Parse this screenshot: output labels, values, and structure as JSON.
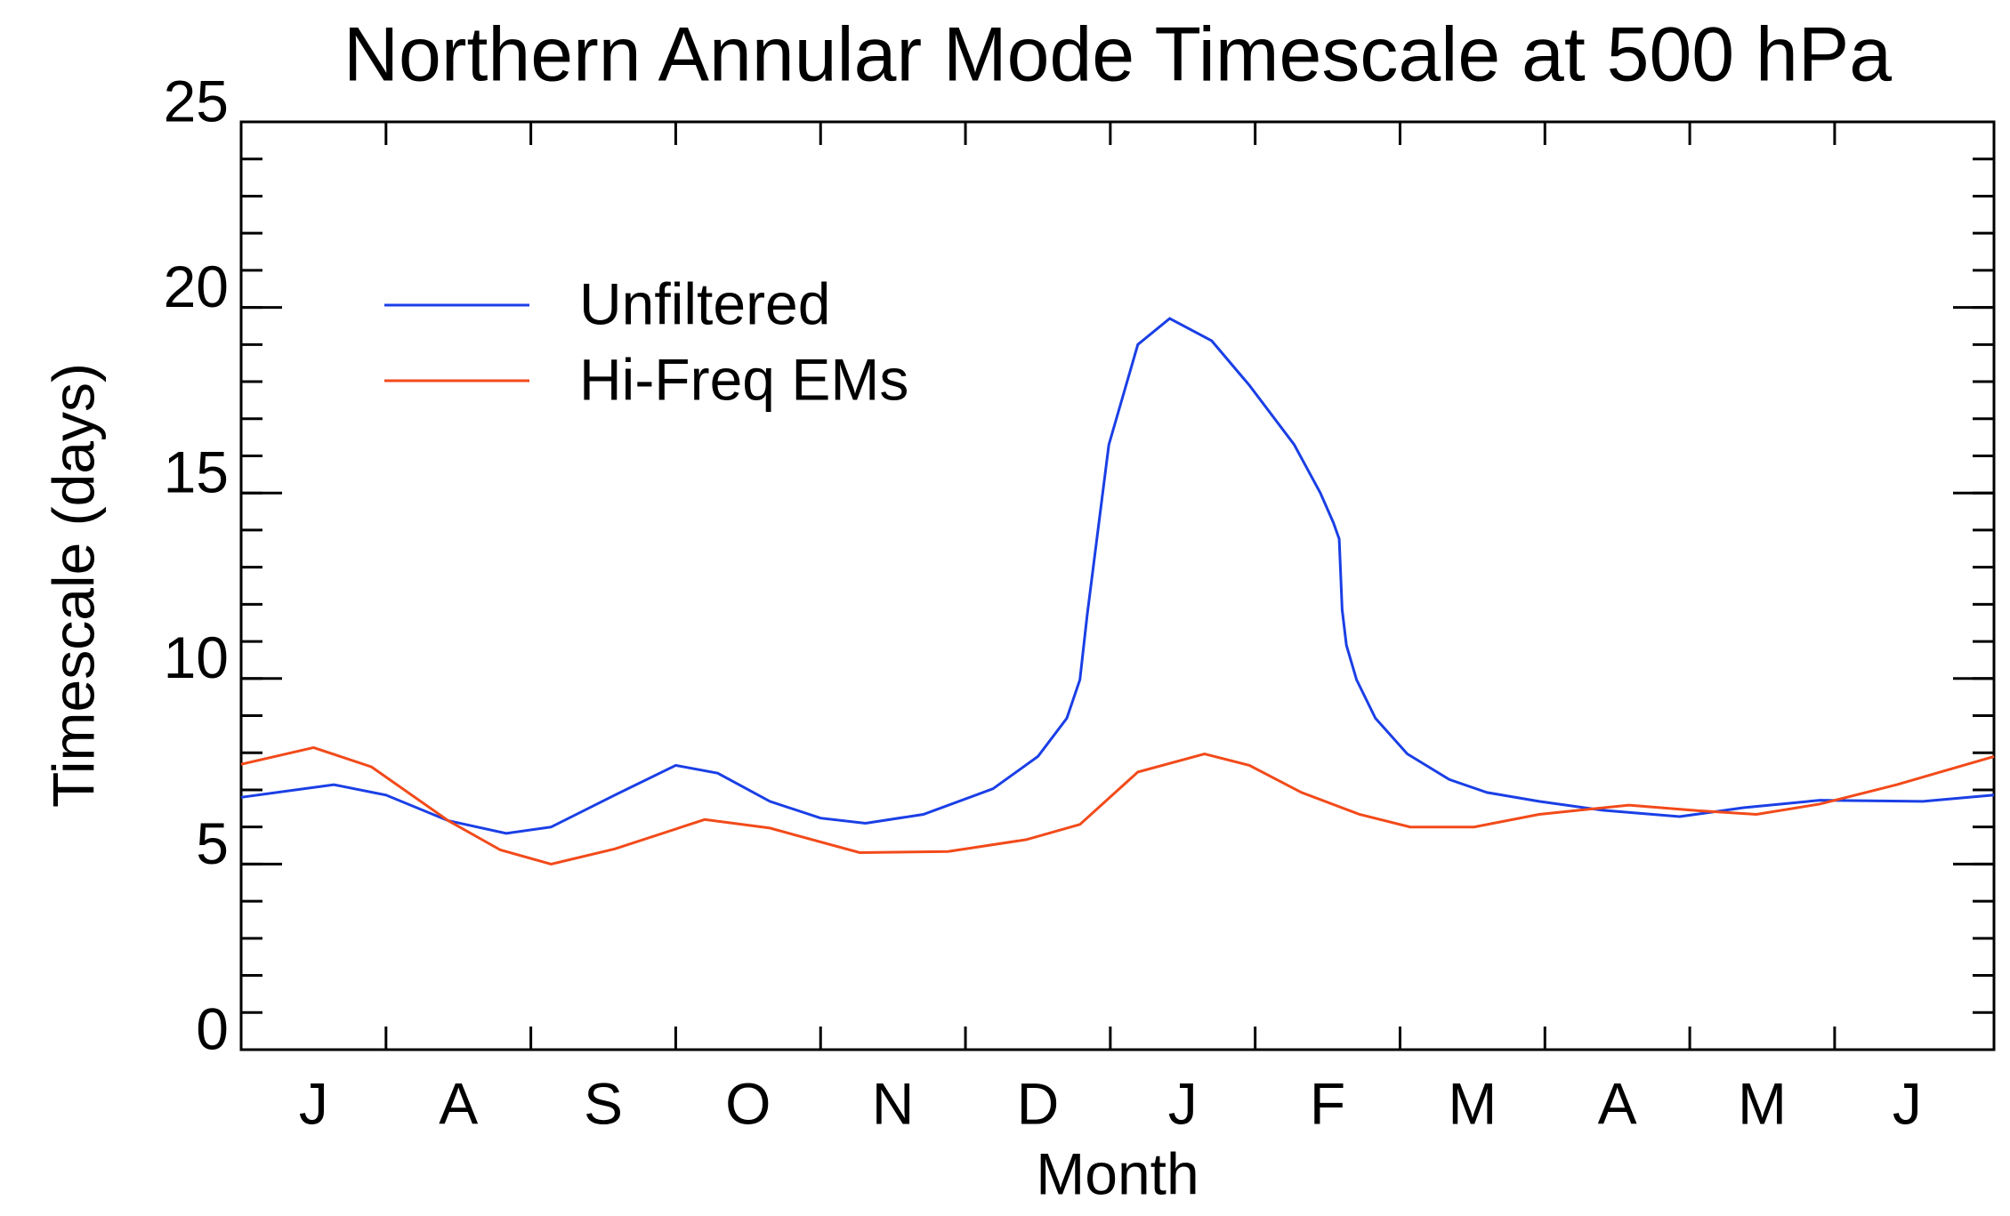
{
  "chart_data": {
    "type": "line",
    "title": "Northern Annular Mode Timescale at 500 hPa",
    "xlabel": "Month",
    "ylabel": "Timescale (days)",
    "categories": [
      "J",
      "A",
      "S",
      "O",
      "N",
      "D",
      "J",
      "F",
      "M",
      "A",
      "M",
      "J"
    ],
    "xlim": [
      0,
      12.1
    ],
    "ylim": [
      0,
      25
    ],
    "yticks": [
      0,
      5,
      10,
      15,
      20,
      25
    ],
    "legend": "upper left",
    "series": [
      {
        "name": "Unfiltered",
        "color": "#1a3fe6",
        "x": [
          0,
          0.64,
          1.0,
          1.43,
          1.83,
          2.14,
          2.58,
          3.0,
          3.29,
          3.65,
          4.0,
          4.31,
          4.71,
          5.19,
          5.5,
          5.7,
          5.79,
          5.84,
          5.99,
          6.19,
          6.41,
          6.7,
          6.96,
          7.27,
          7.45,
          7.54,
          7.58,
          7.6,
          7.63,
          7.7,
          7.83,
          8.05,
          8.34,
          8.6,
          8.96,
          9.4,
          9.93,
          10.37,
          10.9,
          11.61,
          12.1
        ],
        "values": [
          6.8,
          7.14,
          6.86,
          6.17,
          5.83,
          6.0,
          6.86,
          7.66,
          7.45,
          6.69,
          6.24,
          6.1,
          6.34,
          7.03,
          7.9,
          8.93,
          9.97,
          11.7,
          16.3,
          19.0,
          19.7,
          19.1,
          17.9,
          16.3,
          15.0,
          14.2,
          13.76,
          11.86,
          10.9,
          9.97,
          8.93,
          7.97,
          7.28,
          6.93,
          6.69,
          6.45,
          6.28,
          6.52,
          6.72,
          6.69,
          6.86
        ]
      },
      {
        "name": "Hi-Freq EMs",
        "color": "#f24a1a",
        "x": [
          0,
          0.5,
          0.9,
          1.43,
          1.79,
          2.14,
          2.58,
          3.2,
          3.65,
          4.27,
          4.88,
          5.42,
          5.79,
          6.19,
          6.65,
          6.96,
          7.32,
          7.72,
          8.07,
          8.51,
          8.96,
          9.58,
          10.02,
          10.46,
          10.9,
          11.43,
          12.1
        ],
        "values": [
          7.69,
          8.14,
          7.62,
          6.17,
          5.38,
          5.0,
          5.41,
          6.2,
          5.97,
          5.31,
          5.34,
          5.66,
          6.07,
          7.48,
          7.97,
          7.66,
          6.93,
          6.34,
          6.0,
          6.0,
          6.34,
          6.59,
          6.45,
          6.34,
          6.62,
          7.14,
          7.9
        ]
      }
    ]
  }
}
